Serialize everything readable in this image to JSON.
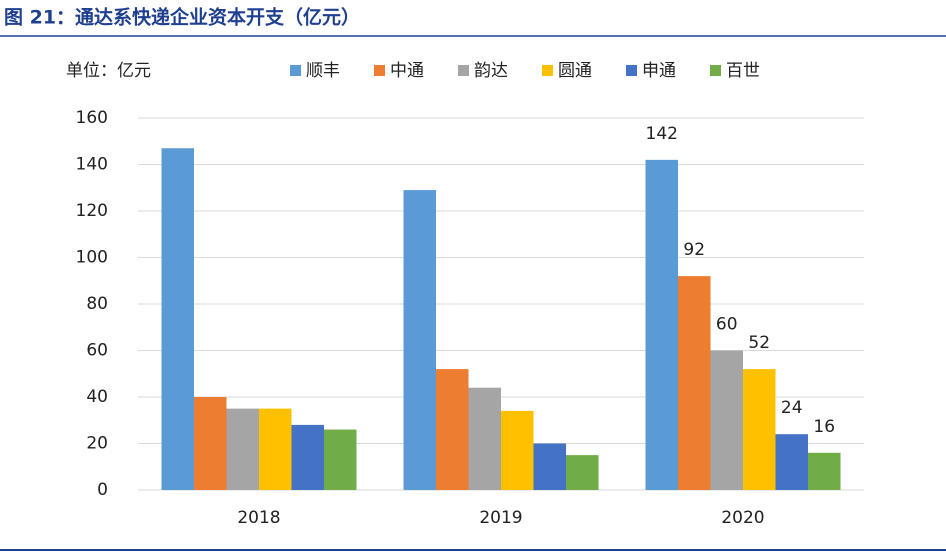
{
  "chart_data": {
    "type": "bar",
    "title": "图 21：通达系快递企业资本开支（亿元）",
    "unit_label": "单位：亿元",
    "categories": [
      "2018",
      "2019",
      "2020"
    ],
    "series": [
      {
        "name": "顺丰",
        "color": "#5b9bd5",
        "values": [
          147,
          129,
          142
        ]
      },
      {
        "name": "中通",
        "color": "#ed7d31",
        "values": [
          40,
          52,
          92
        ]
      },
      {
        "name": "韵达",
        "color": "#a5a5a5",
        "values": [
          35,
          44,
          60
        ]
      },
      {
        "name": "圆通",
        "color": "#ffc000",
        "values": [
          35,
          34,
          52
        ]
      },
      {
        "name": "申通",
        "color": "#4472c4",
        "values": [
          28,
          20,
          24
        ]
      },
      {
        "name": "百世",
        "color": "#70ad47",
        "values": [
          26,
          15,
          16
        ]
      }
    ],
    "ylim": [
      0,
      160
    ],
    "yticks": [
      0,
      20,
      40,
      60,
      80,
      100,
      120,
      140,
      160
    ],
    "grid": true,
    "data_labels": "last"
  }
}
